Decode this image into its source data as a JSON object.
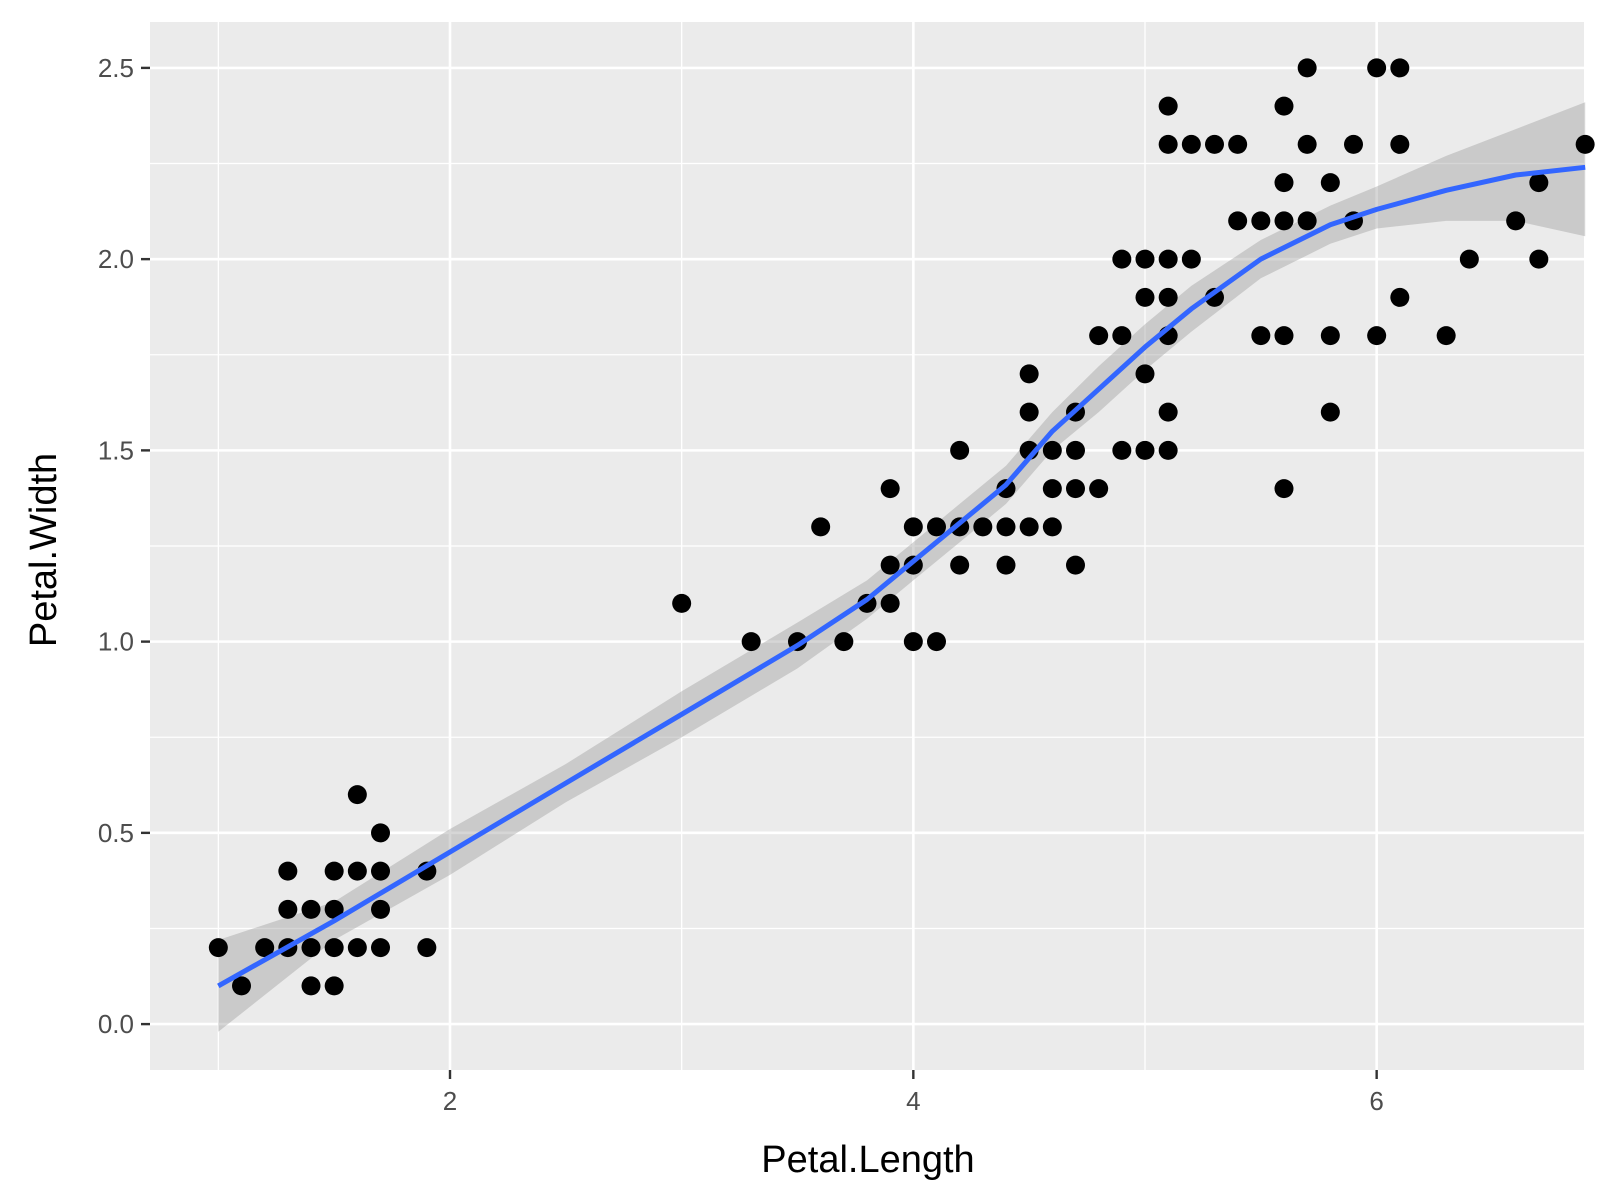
{
  "chart_data": {
    "type": "scatter",
    "title": "",
    "xlabel": "Petal.Length",
    "ylabel": "Petal.Width",
    "xlim": [
      0.705,
      6.895
    ],
    "ylim": [
      -0.12,
      2.62
    ],
    "x_ticks": [
      2,
      4,
      6
    ],
    "x_tick_labels": [
      "2",
      "4",
      "6"
    ],
    "y_ticks": [
      0.0,
      0.5,
      1.0,
      1.5,
      2.0,
      2.5
    ],
    "y_tick_labels": [
      "0.0",
      "0.5",
      "1.0",
      "1.5",
      "2.0",
      "2.5"
    ],
    "grid": true,
    "legend": "none",
    "colors": {
      "panel": "#ebebeb",
      "grid": "#ffffff",
      "points": "#000000",
      "smooth_line": "#3366ff",
      "confidence_band": "#999999"
    },
    "points": [
      [
        1.0,
        0.2
      ],
      [
        1.1,
        0.1
      ],
      [
        1.2,
        0.2
      ],
      [
        1.3,
        0.2
      ],
      [
        1.3,
        0.3
      ],
      [
        1.3,
        0.4
      ],
      [
        1.4,
        0.1
      ],
      [
        1.4,
        0.2
      ],
      [
        1.4,
        0.3
      ],
      [
        1.5,
        0.1
      ],
      [
        1.5,
        0.2
      ],
      [
        1.5,
        0.3
      ],
      [
        1.5,
        0.4
      ],
      [
        1.6,
        0.2
      ],
      [
        1.6,
        0.4
      ],
      [
        1.6,
        0.6
      ],
      [
        1.7,
        0.2
      ],
      [
        1.7,
        0.3
      ],
      [
        1.7,
        0.4
      ],
      [
        1.7,
        0.5
      ],
      [
        1.9,
        0.2
      ],
      [
        1.9,
        0.4
      ],
      [
        3.0,
        1.1
      ],
      [
        3.3,
        1.0
      ],
      [
        3.5,
        1.0
      ],
      [
        3.6,
        1.3
      ],
      [
        3.7,
        1.0
      ],
      [
        3.8,
        1.1
      ],
      [
        3.9,
        1.1
      ],
      [
        3.9,
        1.2
      ],
      [
        3.9,
        1.4
      ],
      [
        4.0,
        1.0
      ],
      [
        4.0,
        1.2
      ],
      [
        4.0,
        1.3
      ],
      [
        4.1,
        1.0
      ],
      [
        4.1,
        1.3
      ],
      [
        4.2,
        1.2
      ],
      [
        4.2,
        1.3
      ],
      [
        4.2,
        1.5
      ],
      [
        4.3,
        1.3
      ],
      [
        4.4,
        1.2
      ],
      [
        4.4,
        1.3
      ],
      [
        4.4,
        1.4
      ],
      [
        4.5,
        1.3
      ],
      [
        4.5,
        1.5
      ],
      [
        4.5,
        1.6
      ],
      [
        4.5,
        1.7
      ],
      [
        4.6,
        1.3
      ],
      [
        4.6,
        1.4
      ],
      [
        4.6,
        1.5
      ],
      [
        4.7,
        1.2
      ],
      [
        4.7,
        1.4
      ],
      [
        4.7,
        1.5
      ],
      [
        4.7,
        1.6
      ],
      [
        4.8,
        1.4
      ],
      [
        4.8,
        1.8
      ],
      [
        4.9,
        1.5
      ],
      [
        4.9,
        1.8
      ],
      [
        4.9,
        2.0
      ],
      [
        5.0,
        1.5
      ],
      [
        5.0,
        1.7
      ],
      [
        5.0,
        1.9
      ],
      [
        5.0,
        2.0
      ],
      [
        5.1,
        1.5
      ],
      [
        5.1,
        1.6
      ],
      [
        5.1,
        1.8
      ],
      [
        5.1,
        1.9
      ],
      [
        5.1,
        2.0
      ],
      [
        5.1,
        2.3
      ],
      [
        5.1,
        2.4
      ],
      [
        5.2,
        2.0
      ],
      [
        5.2,
        2.3
      ],
      [
        5.3,
        1.9
      ],
      [
        5.3,
        2.3
      ],
      [
        5.4,
        2.1
      ],
      [
        5.4,
        2.3
      ],
      [
        5.5,
        1.8
      ],
      [
        5.5,
        2.1
      ],
      [
        5.6,
        1.4
      ],
      [
        5.6,
        1.8
      ],
      [
        5.6,
        2.1
      ],
      [
        5.6,
        2.2
      ],
      [
        5.6,
        2.4
      ],
      [
        5.7,
        2.1
      ],
      [
        5.7,
        2.3
      ],
      [
        5.7,
        2.5
      ],
      [
        5.8,
        1.6
      ],
      [
        5.8,
        1.8
      ],
      [
        5.8,
        2.2
      ],
      [
        5.9,
        2.1
      ],
      [
        5.9,
        2.3
      ],
      [
        6.0,
        1.8
      ],
      [
        6.0,
        2.5
      ],
      [
        6.1,
        1.9
      ],
      [
        6.1,
        2.3
      ],
      [
        6.1,
        2.5
      ],
      [
        6.3,
        1.8
      ],
      [
        6.4,
        2.0
      ],
      [
        6.6,
        2.1
      ],
      [
        6.7,
        2.0
      ],
      [
        6.7,
        2.2
      ],
      [
        6.9,
        2.3
      ]
    ],
    "smooth_fit": {
      "x": [
        1.0,
        1.5,
        2.0,
        2.5,
        3.0,
        3.5,
        3.8,
        4.0,
        4.2,
        4.4,
        4.6,
        4.8,
        5.0,
        5.2,
        5.5,
        5.8,
        6.0,
        6.3,
        6.6,
        6.9
      ],
      "y": [
        0.1,
        0.27,
        0.45,
        0.63,
        0.81,
        0.99,
        1.11,
        1.21,
        1.31,
        1.41,
        1.55,
        1.66,
        1.77,
        1.87,
        2.0,
        2.09,
        2.13,
        2.18,
        2.22,
        2.24
      ],
      "lower": [
        -0.02,
        0.22,
        0.39,
        0.58,
        0.75,
        0.93,
        1.06,
        1.16,
        1.26,
        1.36,
        1.5,
        1.6,
        1.71,
        1.81,
        1.95,
        2.04,
        2.08,
        2.1,
        2.1,
        2.06
      ],
      "upper": [
        0.22,
        0.32,
        0.51,
        0.68,
        0.87,
        1.05,
        1.16,
        1.26,
        1.36,
        1.46,
        1.6,
        1.72,
        1.83,
        1.93,
        2.05,
        2.14,
        2.19,
        2.27,
        2.34,
        2.41
      ]
    }
  }
}
